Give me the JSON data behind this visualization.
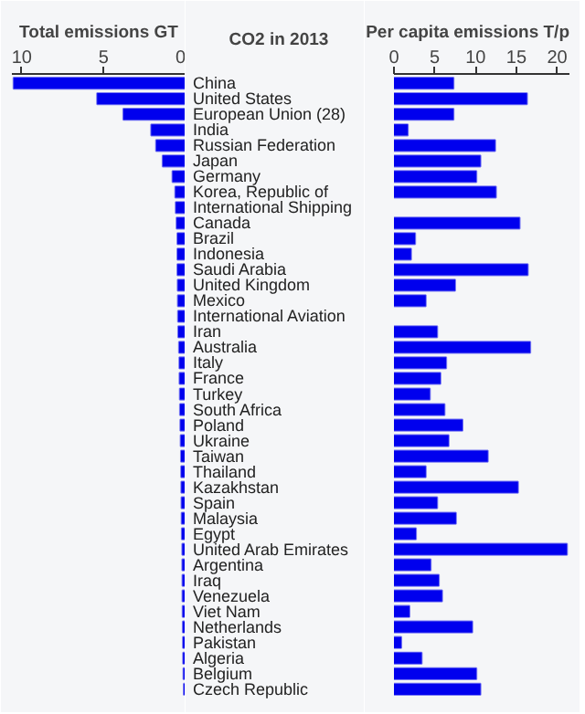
{
  "chart_data": [
    {
      "type": "bar",
      "orientation": "horizontal",
      "title": "Total emissions GT",
      "annotations": [
        "CO2 in 2013"
      ],
      "categories": [
        "China",
        "United States",
        "European Union (28)",
        "India",
        "Russian Federation",
        "Japan",
        "Germany",
        "Korea, Republic of",
        "International Shipping",
        "Canada",
        "Brazil",
        "Indonesia",
        "Saudi Arabia",
        "United Kingdom",
        "Mexico",
        "International Aviation",
        "Iran",
        "Australia",
        "Italy",
        "France",
        "Turkey",
        "South Africa",
        "Poland",
        "Ukraine",
        "Taiwan",
        "Thailand",
        "Kazakhstan",
        "Spain",
        "Malaysia",
        "Egypt",
        "United Arab Emirates",
        "Argentina",
        "Iraq",
        "Venezuela",
        "Viet Nam",
        "Netherlands",
        "Pakistan",
        "Algeria",
        "Belgium",
        "Czech Republic"
      ],
      "values": [
        10.5,
        5.4,
        3.8,
        2.1,
        1.8,
        1.4,
        0.8,
        0.63,
        0.6,
        0.55,
        0.5,
        0.5,
        0.5,
        0.48,
        0.47,
        0.46,
        0.45,
        0.4,
        0.38,
        0.37,
        0.35,
        0.34,
        0.32,
        0.3,
        0.28,
        0.27,
        0.26,
        0.25,
        0.24,
        0.23,
        0.2,
        0.2,
        0.19,
        0.19,
        0.18,
        0.17,
        0.16,
        0.15,
        0.13,
        0.11
      ],
      "color": "#0000ee",
      "xlim": [
        10.6,
        0
      ],
      "xticks": [
        10,
        5,
        0
      ],
      "tick_labels": "x"
    },
    {
      "type": "bar",
      "orientation": "horizontal",
      "title": "Per capita emissions T/p",
      "values": [
        7.3,
        16.3,
        7.3,
        1.7,
        12.4,
        10.6,
        10.1,
        12.5,
        null,
        15.4,
        2.6,
        2.1,
        16.4,
        7.5,
        3.9,
        null,
        5.3,
        16.7,
        6.4,
        5.7,
        4.4,
        6.2,
        8.4,
        6.7,
        11.5,
        3.9,
        15.2,
        5.3,
        7.6,
        2.7,
        21.2,
        4.5,
        5.5,
        5.9,
        1.9,
        9.6,
        0.9,
        3.4,
        10.1,
        10.6
      ],
      "color": "#0000ee",
      "xlim": [
        0,
        21.5
      ],
      "xticks": [
        0,
        5,
        10,
        15,
        20
      ],
      "tick_labels": "x"
    }
  ]
}
